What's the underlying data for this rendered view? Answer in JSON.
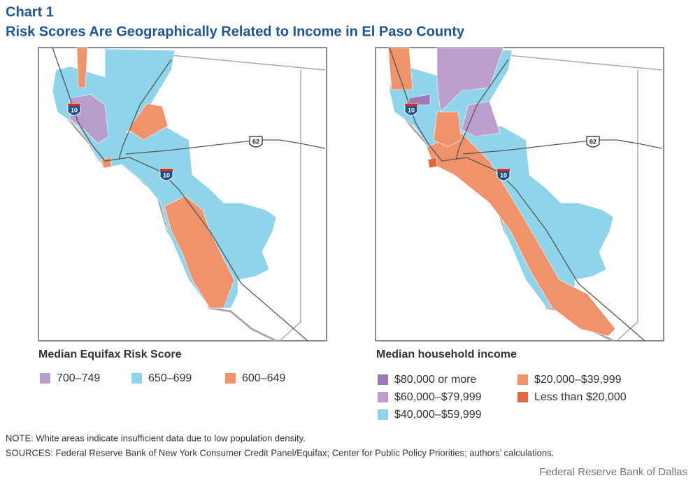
{
  "header": {
    "label": "Chart 1",
    "title": "Risk Scores Are Geographically Related to Income in El Paso County"
  },
  "maps": [
    {
      "legend_title": "Median Equifax Risk Score",
      "shields": [
        "10",
        "10",
        "62"
      ],
      "legend": [
        {
          "label": "700–749",
          "color": "#b99dcc"
        },
        {
          "label": "650–699",
          "color": "#8ed4ea"
        },
        {
          "label": "600–649",
          "color": "#f0936d"
        }
      ]
    },
    {
      "legend_title": "Median household income",
      "shields": [
        "10",
        "10",
        "62"
      ],
      "legend": [
        {
          "label": "$80,000 or more",
          "color": "#9f78b7"
        },
        {
          "label": "$60,000–$79,999",
          "color": "#bc9fcd"
        },
        {
          "label": "$40,000–$59,999",
          "color": "#8ed4ea"
        },
        {
          "label": "$20,000–$39,999",
          "color": "#f0936d"
        },
        {
          "label": "Less than $20,000",
          "color": "#df6a3e"
        }
      ]
    }
  ],
  "note": "NOTE: White areas indicate insufficient data due to low population density.",
  "sources": "SOURCES: Federal Reserve Bank of New York Consumer Credit Panel/Equifax; Center for Public Policy Priorities; authors’ calculations.",
  "credit": "Federal Reserve Bank of Dallas"
}
